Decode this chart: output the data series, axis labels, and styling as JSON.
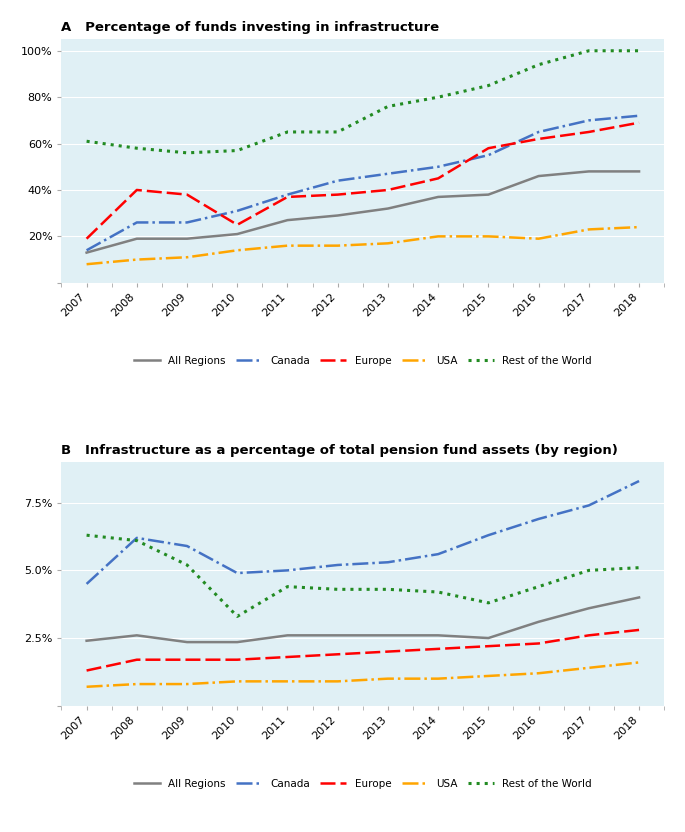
{
  "years": [
    2007,
    2008,
    2009,
    2010,
    2011,
    2012,
    2013,
    2014,
    2015,
    2016,
    2017,
    2018
  ],
  "panel_a": {
    "title": "A   Percentage of funds investing in infrastructure",
    "all_regions": [
      13,
      19,
      19,
      21,
      27,
      29,
      32,
      37,
      38,
      46,
      48,
      48
    ],
    "canada": [
      14,
      26,
      26,
      31,
      38,
      44,
      47,
      50,
      55,
      65,
      70,
      72
    ],
    "europe": [
      19,
      40,
      38,
      25,
      37,
      38,
      40,
      45,
      58,
      62,
      65,
      69
    ],
    "usa": [
      8,
      10,
      11,
      14,
      16,
      16,
      17,
      20,
      20,
      19,
      23,
      24
    ],
    "rotw": [
      61,
      58,
      56,
      57,
      65,
      65,
      76,
      80,
      85,
      94,
      100,
      100
    ],
    "ylim": [
      0,
      105
    ],
    "yticks": [
      0,
      20,
      40,
      60,
      80,
      100
    ],
    "ytick_labels": [
      "",
      "20%",
      "40%",
      "60%",
      "80%",
      "100%"
    ]
  },
  "panel_b": {
    "title": "B   Infrastructure as a percentage of total pension fund assets (by region)",
    "all_regions": [
      2.4,
      2.6,
      2.35,
      2.35,
      2.6,
      2.6,
      2.6,
      2.6,
      2.5,
      3.1,
      3.6,
      4.0
    ],
    "canada": [
      4.5,
      6.2,
      5.9,
      4.9,
      5.0,
      5.2,
      5.3,
      5.6,
      6.3,
      6.9,
      7.4,
      8.3
    ],
    "europe": [
      1.3,
      1.7,
      1.7,
      1.7,
      1.8,
      1.9,
      2.0,
      2.1,
      2.2,
      2.3,
      2.6,
      2.8
    ],
    "usa": [
      0.7,
      0.8,
      0.8,
      0.9,
      0.9,
      0.9,
      1.0,
      1.0,
      1.1,
      1.2,
      1.4,
      1.6
    ],
    "rotw": [
      6.3,
      6.1,
      5.2,
      3.3,
      4.4,
      4.3,
      4.3,
      4.2,
      3.8,
      4.4,
      5.0,
      5.1
    ],
    "ylim": [
      0,
      9.0
    ],
    "yticks": [
      0,
      2.5,
      5.0,
      7.5
    ],
    "ytick_labels": [
      "",
      "2.5%",
      "5.0%",
      "7.5%"
    ]
  },
  "colors": {
    "all_regions": "#808080",
    "canada": "#4472C4",
    "europe": "#FF0000",
    "usa": "#FFA500",
    "rotw": "#228B22"
  },
  "bg_color": "#E0F0F5",
  "fig_bg": "#FFFFFF",
  "lw_main": 1.8,
  "lw_rotw": 2.2
}
